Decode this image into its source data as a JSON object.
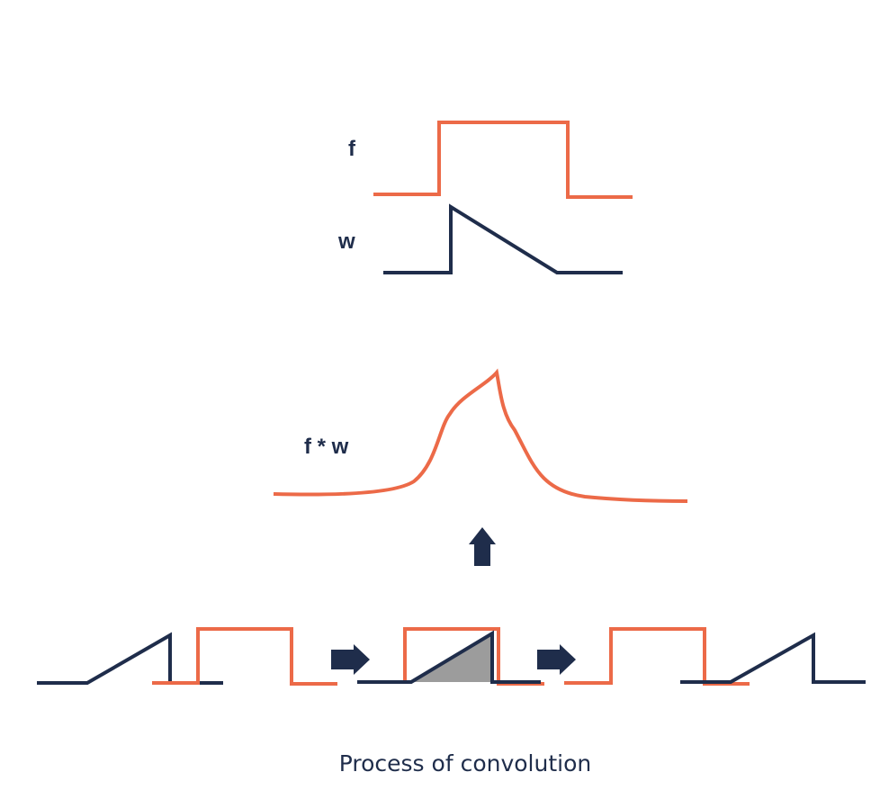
{
  "labels": {
    "f": "f",
    "w": "w",
    "conv": "f * w"
  },
  "caption": "Process of convolution",
  "colors": {
    "f_signal": "#ec6a48",
    "w_signal": "#1f2d4b",
    "overlap_fill": "#9c9c9c",
    "arrow": "#1f2d4b",
    "background": "#ffffff"
  },
  "icons": {
    "step_arrow": "right-arrow-icon",
    "result_arrow": "up-arrow-icon"
  }
}
